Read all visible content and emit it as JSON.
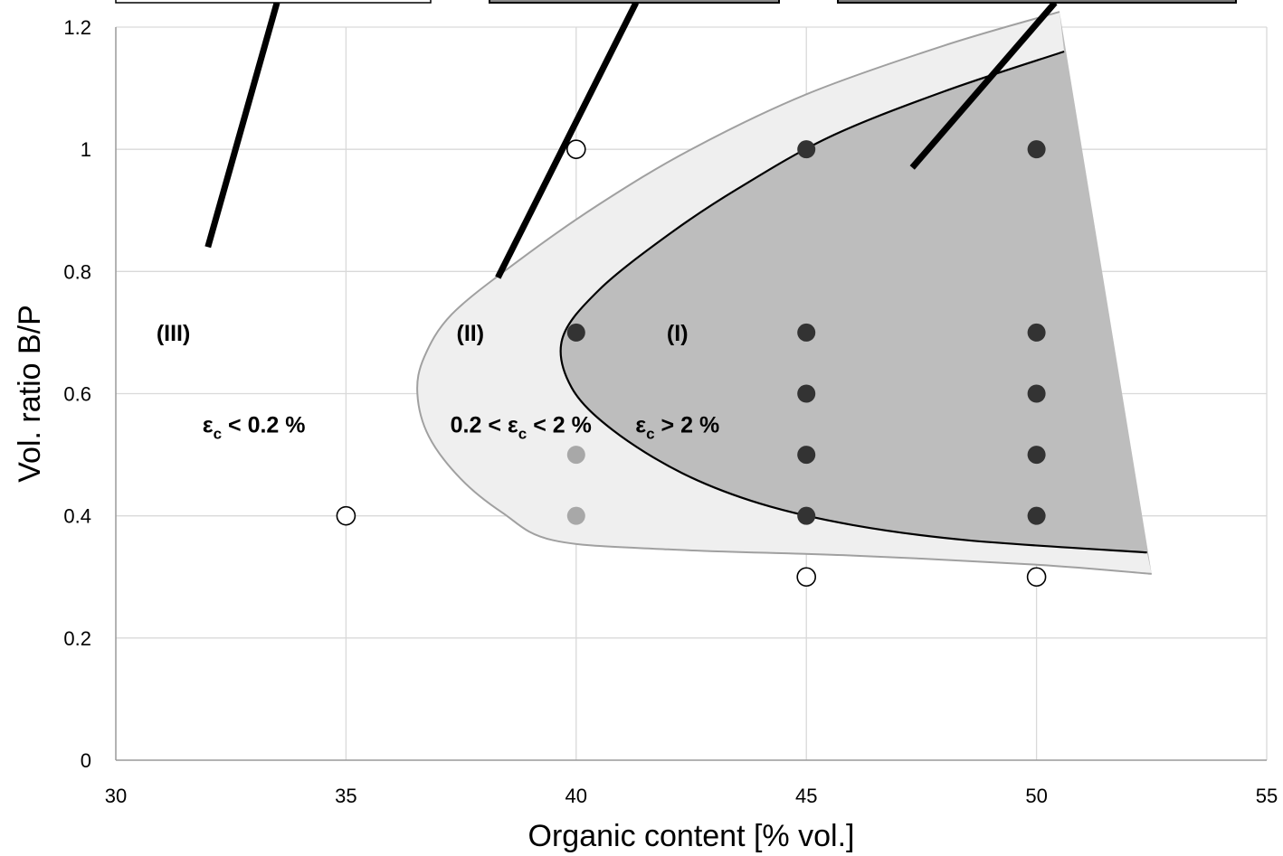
{
  "chart_data": {
    "type": "scatter",
    "xlabel": "Organic content [% vol.]",
    "ylabel": "Vol. ratio B/P",
    "xlim": [
      30,
      55
    ],
    "ylim": [
      0,
      1.2
    ],
    "x_ticks": [
      30,
      35,
      40,
      45,
      50,
      55
    ],
    "y_ticks": [
      {
        "value": 0,
        "label": "0"
      },
      {
        "value": 0.2,
        "label": "0.2"
      },
      {
        "value": 0.4,
        "label": "0.4"
      },
      {
        "value": 0.6,
        "label": "0.6"
      },
      {
        "value": 0.8,
        "label": "0.8"
      },
      {
        "value": 1.0,
        "label": "1"
      },
      {
        "value": 1.2,
        "label": "1.2"
      }
    ],
    "grid": true,
    "series": [
      {
        "marker": "filled-dark",
        "color": "#333333",
        "points": [
          {
            "x": 40,
            "y": 0.7
          },
          {
            "x": 45,
            "y": 1.0
          },
          {
            "x": 45,
            "y": 0.7
          },
          {
            "x": 45,
            "y": 0.6
          },
          {
            "x": 45,
            "y": 0.5
          },
          {
            "x": 45,
            "y": 0.4
          },
          {
            "x": 50,
            "y": 1.0
          },
          {
            "x": 50,
            "y": 0.7
          },
          {
            "x": 50,
            "y": 0.6
          },
          {
            "x": 50,
            "y": 0.5
          },
          {
            "x": 50,
            "y": 0.4
          }
        ]
      },
      {
        "marker": "filled-light",
        "color": "#a8a8a8",
        "points": [
          {
            "x": 40,
            "y": 0.5
          },
          {
            "x": 40,
            "y": 0.4
          }
        ]
      },
      {
        "marker": "open-circle",
        "color": "#000000",
        "points": [
          {
            "x": 40,
            "y": 1.0
          },
          {
            "x": 35,
            "y": 0.4
          },
          {
            "x": 45,
            "y": 0.3
          },
          {
            "x": 50,
            "y": 0.3
          }
        ]
      }
    ],
    "regions": [
      {
        "id": "region-II",
        "fill": "#efefef",
        "stroke": "#a0a0a0",
        "boundary": [
          [
            50.5,
            1.225
          ],
          [
            48.0,
            1.17
          ],
          [
            45.0,
            1.09
          ],
          [
            42.5,
            1.0
          ],
          [
            40.5,
            0.91
          ],
          [
            38.7,
            0.815
          ],
          [
            37.3,
            0.73
          ],
          [
            36.7,
            0.66
          ],
          [
            36.55,
            0.6
          ],
          [
            36.8,
            0.53
          ],
          [
            37.5,
            0.46
          ],
          [
            38.4,
            0.405
          ],
          [
            39.5,
            0.36
          ],
          [
            42.0,
            0.345
          ],
          [
            46.0,
            0.335
          ],
          [
            50.0,
            0.32
          ],
          [
            52.5,
            0.305
          ]
        ]
      },
      {
        "id": "region-I",
        "fill": "#bdbdbd",
        "stroke": "#000000",
        "boundary": [
          [
            50.6,
            1.16
          ],
          [
            48.0,
            1.095
          ],
          [
            45.5,
            1.02
          ],
          [
            43.5,
            0.935
          ],
          [
            42.0,
            0.86
          ],
          [
            40.5,
            0.77
          ],
          [
            39.7,
            0.69
          ],
          [
            39.9,
            0.61
          ],
          [
            40.8,
            0.54
          ],
          [
            42.3,
            0.47
          ],
          [
            44.0,
            0.42
          ],
          [
            46.0,
            0.385
          ],
          [
            48.5,
            0.36
          ],
          [
            52.4,
            0.34
          ]
        ],
        "tip": [
          52.5,
          0.305
        ],
        "tip_top": [
          50.5,
          1.225
        ]
      }
    ],
    "leader_lines": [
      {
        "from": [
          32.0,
          0.84
        ],
        "to": [
          33.5,
          1.24
        ]
      },
      {
        "from": [
          38.3,
          0.79
        ],
        "to": [
          41.3,
          1.24
        ]
      },
      {
        "from": [
          47.3,
          0.97
        ],
        "to": [
          50.4,
          1.24
        ]
      }
    ],
    "annotations": [
      {
        "id": "label-III",
        "text": "(III)",
        "x": 31.25,
        "y": 0.7
      },
      {
        "id": "label-II",
        "text": "(II)",
        "x": 37.7,
        "y": 0.7
      },
      {
        "id": "label-I",
        "text": "(I)",
        "x": 42.2,
        "y": 0.7
      },
      {
        "id": "strain-III",
        "base": "ε",
        "sub": "c",
        "rest": " < 0.2 %",
        "x": 33.0,
        "y": 0.55
      },
      {
        "id": "strain-II",
        "pre": "0.2 < ",
        "base": "ε",
        "sub": "c",
        "rest": " < 2 %",
        "x": 38.8,
        "y": 0.55
      },
      {
        "id": "strain-I",
        "base": "ε",
        "sub": "c",
        "rest": " > 2 %",
        "x": 42.2,
        "y": 0.55
      }
    ]
  }
}
